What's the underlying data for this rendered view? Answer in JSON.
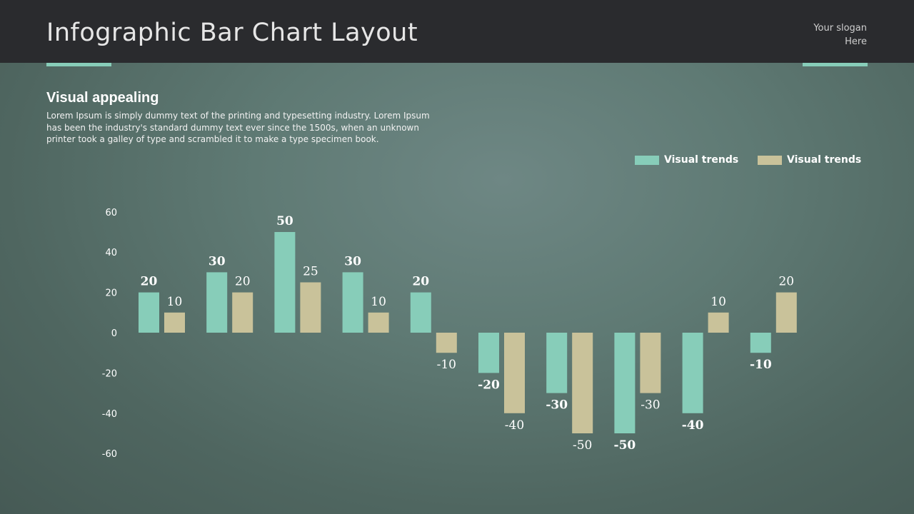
{
  "header": {
    "title": "Infographic Bar Chart Layout",
    "slogan_line1": "Your slogan",
    "slogan_line2": "Here"
  },
  "intro": {
    "heading": "Visual appealing",
    "text": "Lorem Ipsum is simply dummy text of the printing and typesetting industry. Lorem Ipsum has been the industry's standard dummy text ever since the 1500s, when an unknown printer took a galley of type and scrambled it to make a type specimen book."
  },
  "colors": {
    "accent": "#87cdb9",
    "series1": "#87cdb9",
    "series2": "#c9c29a",
    "topbar": "#2a2b2e"
  },
  "chart_data": {
    "type": "bar",
    "categories": [
      "",
      "",
      "",
      "",
      "",
      "",
      "",
      "",
      "",
      ""
    ],
    "series": [
      {
        "name": "Visual trends",
        "values": [
          20,
          30,
          50,
          30,
          20,
          -20,
          -30,
          -50,
          -40,
          -10
        ]
      },
      {
        "name": "Visual trends",
        "values": [
          10,
          20,
          25,
          10,
          -10,
          -40,
          -50,
          -30,
          10,
          20
        ]
      }
    ],
    "yticks": [
      60,
      40,
      20,
      0,
      -20,
      -40,
      -60
    ],
    "ylim": [
      -60,
      60
    ],
    "grid": false,
    "legend_position": "top-right",
    "data_labels": true
  }
}
